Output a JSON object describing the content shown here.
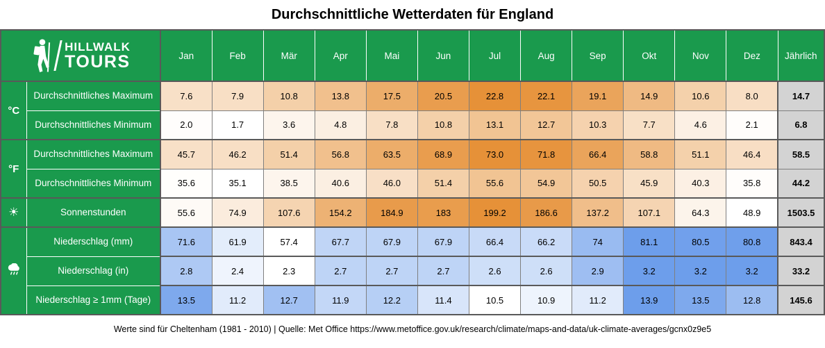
{
  "title": "Durchschnittliche Wetterdaten für England",
  "logo": {
    "brand_line1": "HILLWALK",
    "brand_line2": "TOURS"
  },
  "footer": {
    "source_note": "Werte sind für Cheltenham (1981 - 2010) | Quelle: Met Office https://www.metoffice.gov.uk/research/climate/maps-and-data/uk-climate-averages/gcnx0z9e5"
  },
  "colors": {
    "header_green": "#1a9a4d",
    "scale_min": "#ffffff",
    "scale_orange_max": "#e69138",
    "scale_blue_max": "#6d9eeb",
    "annual_gray": "#d3d3d3",
    "border_dark": "#595959",
    "border_light": "#7f7f7f"
  },
  "chart_data": {
    "type": "table",
    "columns": [
      "Jan",
      "Feb",
      "Mär",
      "Apr",
      "Mai",
      "Jun",
      "Jul",
      "Aug",
      "Sep",
      "Okt",
      "Nov",
      "Dez"
    ],
    "annual_column": "Jährlich",
    "groups": [
      {
        "unit_label": "°C",
        "icon": "celsius-label",
        "row_count": 2
      },
      {
        "unit_label": "°F",
        "icon": "fahrenheit-label",
        "row_count": 2
      },
      {
        "unit_label": "☀",
        "icon": "sun-icon",
        "row_count": 1
      },
      {
        "unit_label": "",
        "icon": "rain-cloud-icon",
        "row_count": 3
      }
    ],
    "rows": [
      {
        "label": "Durchschnittliches Maximum",
        "group": 0,
        "scale": "orange",
        "scale_group": "celsius",
        "values": [
          "7.6",
          "7.9",
          "10.8",
          "13.8",
          "17.5",
          "20.5",
          "22.8",
          "22.1",
          "19.1",
          "14.9",
          "10.6",
          "8.0"
        ],
        "annual": "14.7"
      },
      {
        "label": "Durchschnittliches Minimum",
        "group": 0,
        "scale": "orange",
        "scale_group": "celsius",
        "values": [
          "2.0",
          "1.7",
          "3.6",
          "4.8",
          "7.8",
          "10.8",
          "13.1",
          "12.7",
          "10.3",
          "7.7",
          "4.6",
          "2.1"
        ],
        "annual": "6.8"
      },
      {
        "label": "Durchschnittliches Maximum",
        "group": 1,
        "scale": "orange",
        "scale_group": "fahrenheit",
        "values": [
          "45.7",
          "46.2",
          "51.4",
          "56.8",
          "63.5",
          "68.9",
          "73.0",
          "71.8",
          "66.4",
          "58.8",
          "51.1",
          "46.4"
        ],
        "annual": "58.5"
      },
      {
        "label": "Durchschnittliches Minimum",
        "group": 1,
        "scale": "orange",
        "scale_group": "fahrenheit",
        "values": [
          "35.6",
          "35.1",
          "38.5",
          "40.6",
          "46.0",
          "51.4",
          "55.6",
          "54.9",
          "50.5",
          "45.9",
          "40.3",
          "35.8"
        ],
        "annual": "44.2"
      },
      {
        "label": "Sonnenstunden",
        "group": 2,
        "scale": "orange",
        "scale_group": "sun",
        "values": [
          "55.6",
          "74.9",
          "107.6",
          "154.2",
          "184.9",
          "183",
          "199.2",
          "186.6",
          "137.2",
          "107.1",
          "64.3",
          "48.9"
        ],
        "annual": "1503.5"
      },
      {
        "label": "Niederschlag (mm)",
        "group": 3,
        "scale": "blue",
        "scale_group": "rain_mm",
        "values": [
          "71.6",
          "61.9",
          "57.4",
          "67.7",
          "67.9",
          "67.9",
          "66.4",
          "66.2",
          "74",
          "81.1",
          "80.5",
          "80.8"
        ],
        "annual": "843.4"
      },
      {
        "label": "Niederschlag (in)",
        "group": 3,
        "scale": "blue",
        "scale_group": "rain_in",
        "values": [
          "2.8",
          "2.4",
          "2.3",
          "2.7",
          "2.7",
          "2.7",
          "2.6",
          "2.6",
          "2.9",
          "3.2",
          "3.2",
          "3.2"
        ],
        "annual": "33.2"
      },
      {
        "label": "Niederschlag ≥ 1mm (Tage)",
        "group": 3,
        "scale": "blue",
        "scale_group": "rain_days",
        "values": [
          "13.5",
          "11.2",
          "12.7",
          "11.9",
          "12.2",
          "11.4",
          "10.5",
          "10.9",
          "11.2",
          "13.9",
          "13.5",
          "12.8"
        ],
        "annual": "145.6"
      }
    ]
  }
}
